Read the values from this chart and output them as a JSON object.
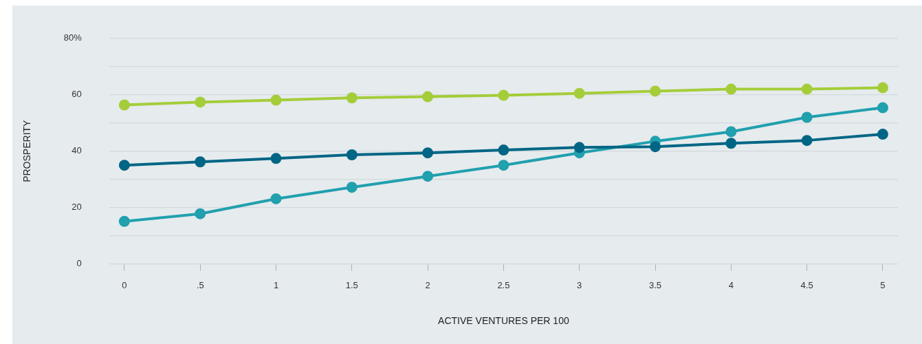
{
  "chart_data": {
    "type": "line",
    "xlabel": "ACTIVE VENTURES PER 100",
    "ylabel": "PROSPERITY",
    "x": [
      0,
      0.5,
      1,
      1.5,
      2,
      2.5,
      3,
      3.5,
      4,
      4.5,
      5
    ],
    "series": [
      {
        "color": "#a4cd39",
        "values": [
          56.4,
          57.4,
          58.1,
          58.9,
          59.3,
          59.8,
          60.5,
          61.3,
          62.0,
          62.0,
          62.5
        ]
      },
      {
        "color": "#006685",
        "values": [
          35.0,
          36.2,
          37.4,
          38.7,
          39.4,
          40.4,
          41.3,
          41.6,
          42.8,
          43.8,
          46.0
        ]
      },
      {
        "color": "#21a0ae",
        "values": [
          15.1,
          17.8,
          23.1,
          27.2,
          31.1,
          35.0,
          39.4,
          43.5,
          46.9,
          52.0,
          55.4
        ]
      }
    ],
    "xlim": [
      -0.1,
      5.1
    ],
    "xticks": [
      0,
      {
        "value": 0.5,
        "label": ".5"
      },
      1,
      1.5,
      2,
      2.5,
      3,
      3.5,
      4,
      4.5,
      5
    ],
    "ylim": [
      0,
      80
    ],
    "yticks": [
      0,
      {
        "value": 10,
        "label": null
      },
      20,
      {
        "value": 30,
        "label": null
      },
      40,
      {
        "value": 50,
        "label": null
      },
      60,
      {
        "value": 70,
        "label": null
      },
      {
        "value": 80,
        "label": "80%"
      }
    ],
    "grid": "y",
    "marker": "circle",
    "line_style": "solid",
    "legend": false
  }
}
